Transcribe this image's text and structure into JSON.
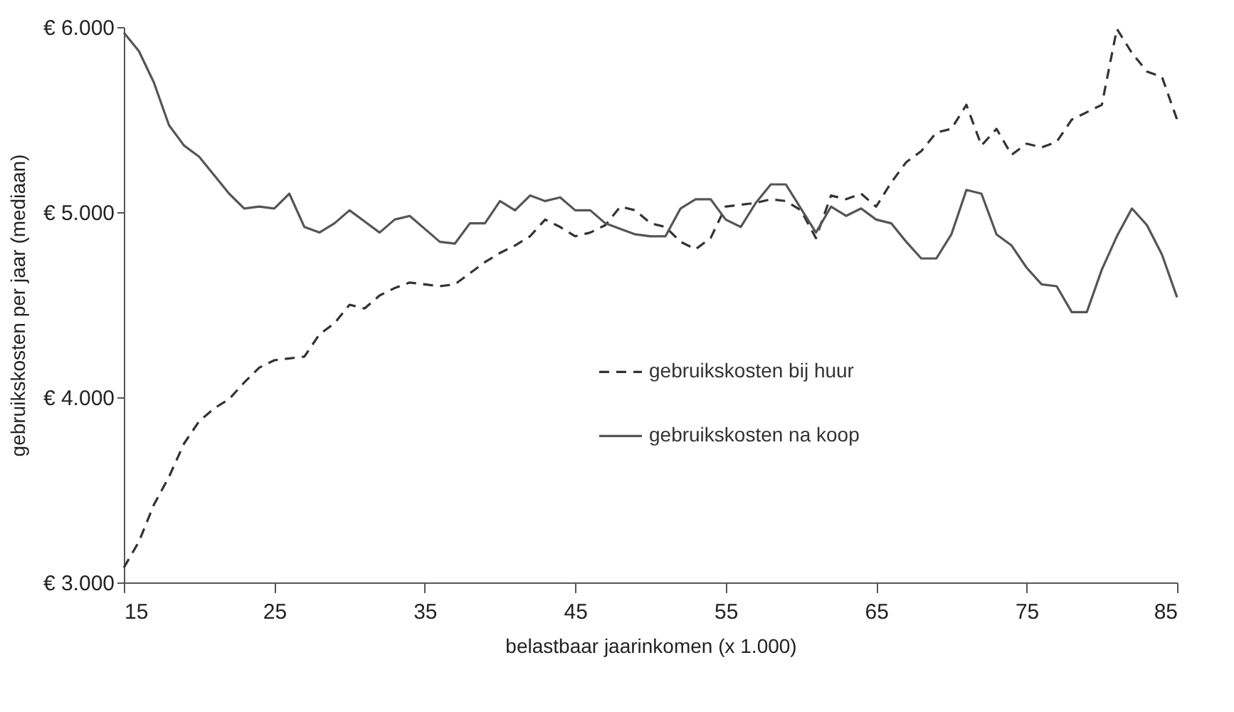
{
  "chart_data": {
    "type": "line",
    "xlabel": "belastbaar jaarinkomen (x 1.000)",
    "ylabel": "gebruikskosten per jaar (mediaan)",
    "x": [
      15,
      16,
      17,
      18,
      19,
      20,
      21,
      22,
      23,
      24,
      25,
      26,
      27,
      28,
      29,
      30,
      31,
      32,
      33,
      34,
      35,
      36,
      37,
      38,
      39,
      40,
      41,
      42,
      43,
      44,
      45,
      46,
      47,
      48,
      49,
      50,
      51,
      52,
      53,
      54,
      55,
      56,
      57,
      58,
      59,
      60,
      61,
      62,
      63,
      64,
      65,
      66,
      67,
      68,
      69,
      70,
      71,
      72,
      73,
      74,
      75,
      76,
      77,
      78,
      79,
      80,
      81,
      82,
      83,
      84,
      85
    ],
    "series": [
      {
        "name": "gebruikskosten bij huur",
        "color": "#333333",
        "line_style": "dashed",
        "values": [
          3080,
          3220,
          3420,
          3570,
          3750,
          3870,
          3940,
          3990,
          4080,
          4160,
          4200,
          4210,
          4220,
          4340,
          4400,
          4500,
          4480,
          4550,
          4590,
          4620,
          4610,
          4600,
          4610,
          4670,
          4730,
          4780,
          4820,
          4870,
          4960,
          4920,
          4870,
          4890,
          4930,
          5030,
          5010,
          4940,
          4920,
          4840,
          4800,
          4860,
          5030,
          5040,
          5050,
          5070,
          5060,
          5010,
          4860,
          5090,
          5070,
          5100,
          5030,
          5160,
          5270,
          5330,
          5430,
          5450,
          5580,
          5360,
          5450,
          5310,
          5370,
          5350,
          5380,
          5500,
          5540,
          5580,
          5990,
          5860,
          5760,
          5730,
          5500
        ]
      },
      {
        "name": "gebruikskosten na koop",
        "color": "#555555",
        "line_style": "solid",
        "values": [
          5970,
          5870,
          5700,
          5470,
          5360,
          5300,
          5200,
          5100,
          5020,
          5030,
          5020,
          5100,
          4920,
          4890,
          4940,
          5010,
          4950,
          4890,
          4960,
          4980,
          4910,
          4840,
          4830,
          4940,
          4940,
          5060,
          5010,
          5090,
          5060,
          5080,
          5010,
          5010,
          4940,
          4910,
          4880,
          4870,
          4870,
          5020,
          5070,
          5070,
          4960,
          4920,
          5050,
          5150,
          5150,
          5020,
          4890,
          5030,
          4980,
          5020,
          4960,
          4940,
          4840,
          4750,
          4750,
          4880,
          5120,
          5100,
          4880,
          4820,
          4700,
          4610,
          4600,
          4460,
          4460,
          4690,
          4870,
          5020,
          4930,
          4770,
          4540
        ]
      }
    ],
    "xlim": [
      15,
      85
    ],
    "xticks": [
      15,
      25,
      35,
      45,
      55,
      65,
      75,
      85
    ],
    "ylim": [
      3000,
      6000
    ],
    "yticks": [
      {
        "value": 3000,
        "label": "€ 3.000"
      },
      {
        "value": 4000,
        "label": "€ 4.000"
      },
      {
        "value": 5000,
        "label": "€ 5.000"
      },
      {
        "value": 6000,
        "label": "€ 6.000"
      }
    ],
    "grid": false,
    "legend": "bottom",
    "marker": "none"
  }
}
